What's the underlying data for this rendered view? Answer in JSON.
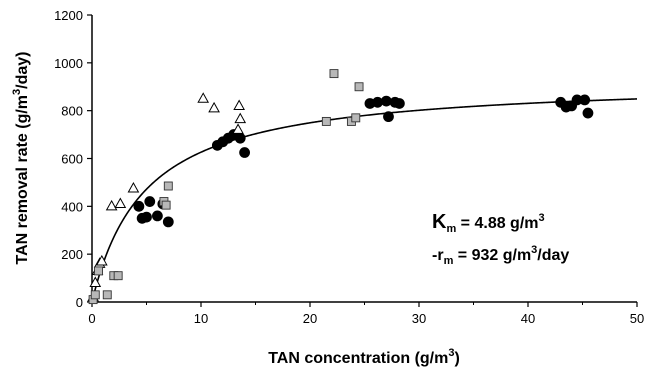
{
  "chart_data": {
    "type": "scatter",
    "title": "",
    "xlabel": "TAN concentration (g/m",
    "xlabel_sup": "3",
    "xlabel_end": ")",
    "ylabel": "TAN removal rate (g/m",
    "ylabel_sup": "3",
    "ylabel_end": "/day)",
    "xlim": [
      0,
      50
    ],
    "ylim": [
      0,
      1200
    ],
    "xticks": [
      "0",
      "10",
      "20",
      "30",
      "40",
      "50"
    ],
    "yticks": [
      "0",
      "200",
      "400",
      "600",
      "800",
      "1000",
      "1200"
    ],
    "grid": false,
    "legend": "none",
    "series": [
      {
        "marker": "filled-circle",
        "color": "#000000",
        "points": [
          [
            4.3,
            400
          ],
          [
            4.6,
            350
          ],
          [
            5.0,
            355
          ],
          [
            5.3,
            420
          ],
          [
            6.0,
            360
          ],
          [
            6.5,
            410
          ],
          [
            7.0,
            335
          ],
          [
            11.5,
            655
          ],
          [
            12.0,
            670
          ],
          [
            12.5,
            685
          ],
          [
            13.0,
            700
          ],
          [
            13.6,
            685
          ],
          [
            14.0,
            625
          ],
          [
            25.5,
            830
          ],
          [
            26.2,
            835
          ],
          [
            27.0,
            840
          ],
          [
            27.2,
            775
          ],
          [
            27.8,
            835
          ],
          [
            28.2,
            830
          ],
          [
            43.0,
            835
          ],
          [
            43.5,
            815
          ],
          [
            44.0,
            820
          ],
          [
            44.5,
            845
          ],
          [
            45.2,
            845
          ],
          [
            45.5,
            790
          ]
        ]
      },
      {
        "marker": "open-triangle",
        "color": "#000000",
        "points": [
          [
            0.1,
            20
          ],
          [
            0.3,
            80
          ],
          [
            0.5,
            130
          ],
          [
            0.7,
            160
          ],
          [
            0.9,
            170
          ],
          [
            1.8,
            400
          ],
          [
            2.6,
            410
          ],
          [
            3.8,
            475
          ],
          [
            10.2,
            850
          ],
          [
            11.2,
            810
          ],
          [
            13.5,
            820
          ],
          [
            13.6,
            765
          ],
          [
            13.4,
            720
          ]
        ]
      },
      {
        "marker": "shaded-square",
        "color": "#b8b8b8",
        "points": [
          [
            0.1,
            10
          ],
          [
            0.3,
            30
          ],
          [
            0.6,
            130
          ],
          [
            1.4,
            30
          ],
          [
            2.0,
            110
          ],
          [
            2.4,
            110
          ],
          [
            6.6,
            420
          ],
          [
            6.8,
            405
          ],
          [
            7.0,
            485
          ],
          [
            21.5,
            755
          ],
          [
            22.2,
            955
          ],
          [
            23.8,
            755
          ],
          [
            24.2,
            770
          ],
          [
            24.5,
            900
          ]
        ]
      }
    ],
    "fit_curve": {
      "model": "Monod",
      "Km": 4.88,
      "rm": 932
    },
    "annotation": {
      "line1_prefix": "K",
      "line1_sub": "m",
      "line1_mid": " = 4.88 g/m",
      "line1_sup": "3",
      "line2_prefix": "-r",
      "line2_sub": "m",
      "line2_mid": " =  932 g/m",
      "line2_sup": "3",
      "line2_end": "/day"
    }
  }
}
